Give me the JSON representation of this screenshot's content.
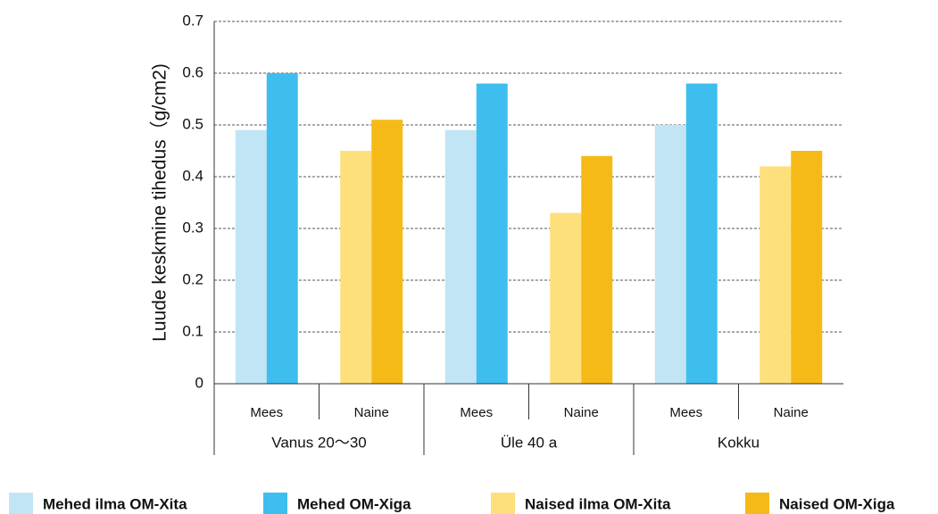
{
  "chart_data": {
    "type": "bar",
    "y_label": "Luude keskmine tihedus（g/cm2)",
    "categories": [
      "Mees",
      "Naine",
      "Mees",
      "Naine",
      "Mees",
      "Naine"
    ],
    "groups": [
      "Vanus 20～30",
      "Üle 40 a",
      "Kokku"
    ],
    "series": [
      {
        "name": "Mehed ilma OM-Xita",
        "color": "#c2e5f6",
        "values": [
          0.49,
          null,
          0.49,
          null,
          0.5,
          null
        ]
      },
      {
        "name": "Mehed OM-Xiga",
        "color": "#3ebeef",
        "values": [
          0.6,
          null,
          0.58,
          null,
          0.58,
          null
        ]
      },
      {
        "name": "Naised ilma OM-Xita",
        "color": "#fde07c",
        "values": [
          null,
          0.45,
          null,
          0.33,
          null,
          0.42
        ]
      },
      {
        "name": "Naised OM-Xiga",
        "color": "#f6ba18",
        "values": [
          null,
          0.51,
          null,
          0.44,
          null,
          0.45
        ]
      }
    ],
    "ylim": [
      0,
      0.7
    ],
    "yticks": [
      0,
      0.1,
      0.2,
      0.3,
      0.4,
      0.5,
      0.6,
      0.7
    ],
    "grid": true
  }
}
